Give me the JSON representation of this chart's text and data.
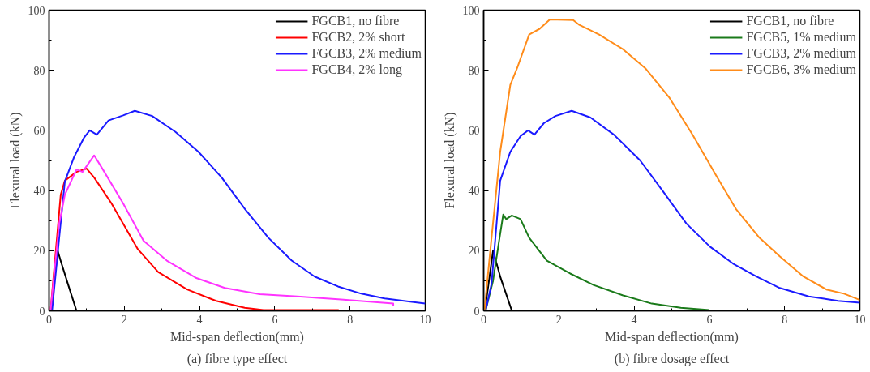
{
  "chart_data": [
    {
      "type": "line",
      "xlabel": "Mid-span deflection(mm)",
      "ylabel": "Flexural load (kN)",
      "annotations": [
        "(a) fibre type effect"
      ],
      "xlim": [
        0,
        10
      ],
      "ylim": [
        0,
        100
      ],
      "xticks": [
        0,
        2,
        4,
        6,
        8,
        10
      ],
      "yticks": [
        0,
        20,
        40,
        60,
        80,
        100
      ],
      "grid": false,
      "legend": "top right",
      "line_style": "solid",
      "marker": "none",
      "series": [
        {
          "name": "FGCB1, no fibre",
          "color": "#000000",
          "x": [
            0.05,
            0.23,
            0.3,
            0.5,
            0.73
          ],
          "values": [
            0,
            20,
            17,
            9,
            0
          ]
        },
        {
          "name": "FGCB2, 2% short",
          "color": "#ff0000",
          "x": [
            0.04,
            0.31,
            0.42,
            0.73,
            1.0,
            1.2,
            1.66,
            2.36,
            2.9,
            3.67,
            4.44,
            5.2,
            5.7,
            7.7
          ],
          "values": [
            0,
            38.6,
            43.3,
            46.2,
            47.3,
            44.3,
            35.7,
            20.5,
            12.9,
            7.1,
            3.3,
            1,
            0.3,
            0.3
          ]
        },
        {
          "name": "FGCB3, 2% medium",
          "color": "#1a1aff",
          "x": [
            0.08,
            0.27,
            0.42,
            0.66,
            0.93,
            1.08,
            1.27,
            1.58,
            1.97,
            2.28,
            2.74,
            3.36,
            3.97,
            4.59,
            5.21,
            5.83,
            6.45,
            7.06,
            7.68,
            8.3,
            8.92,
            10
          ],
          "values": [
            0,
            24.3,
            43,
            51,
            57.6,
            60,
            58.6,
            63.3,
            65,
            66.5,
            64.8,
            59.5,
            52.9,
            44.3,
            33.8,
            24.3,
            16.7,
            11.4,
            8.1,
            5.7,
            4.1,
            2.4
          ]
        },
        {
          "name": "FGCB4, 2% long",
          "color": "#ff33ff",
          "x": [
            0.04,
            0.27,
            0.42,
            0.73,
            0.89,
            1.2,
            1.43,
            1.97,
            2.51,
            3.13,
            3.9,
            4.67,
            5.6,
            6.6,
            7.76,
            9.15,
            9.15
          ],
          "values": [
            0,
            29,
            38.6,
            47,
            46.2,
            51.7,
            47,
            35.7,
            23.3,
            16.7,
            11,
            7.6,
            5.5,
            4.8,
            3.8,
            2.4,
            1.5
          ]
        }
      ]
    },
    {
      "type": "line",
      "xlabel": "Mid-span deflection(mm)",
      "ylabel": "Flexural load (kN)",
      "annotations": [
        "(b) fibre dosage effect"
      ],
      "xlim": [
        0,
        10
      ],
      "ylim": [
        0,
        100
      ],
      "xticks": [
        0,
        2,
        4,
        6,
        8,
        10
      ],
      "yticks": [
        0,
        20,
        40,
        60,
        80,
        100
      ],
      "grid": false,
      "legend": "top right",
      "line_style": "solid",
      "marker": "none",
      "series": [
        {
          "name": "FGCB1, no fibre",
          "color": "#000000",
          "x": [
            0.03,
            0.12,
            0.25,
            0.45,
            0.75
          ],
          "values": [
            0,
            8,
            20,
            11,
            0
          ]
        },
        {
          "name": "FGCB5, 1% medium",
          "color": "#1a7a1a",
          "x": [
            0.05,
            0.25,
            0.4,
            0.52,
            0.6,
            0.75,
            0.98,
            1.21,
            1.68,
            2.3,
            2.92,
            3.69,
            4.47,
            5.24,
            6.0
          ],
          "values": [
            0,
            10,
            22.4,
            32,
            30.5,
            31.7,
            30.5,
            24.3,
            16.7,
            12.4,
            8.6,
            5.2,
            2.4,
            1,
            0.3
          ]
        },
        {
          "name": "FGCB3, 2% medium",
          "color": "#1a1aff",
          "x": [
            0.05,
            0.21,
            0.44,
            0.71,
            0.98,
            1.18,
            1.35,
            1.6,
            1.91,
            2.34,
            2.84,
            3.46,
            4.16,
            4.78,
            5.39,
            6.01,
            6.63,
            7.25,
            7.87,
            8.64,
            9.42,
            10
          ],
          "values": [
            0,
            9,
            43.3,
            52.9,
            58.1,
            60,
            58.6,
            62.4,
            64.8,
            66.5,
            64.3,
            58.6,
            50,
            39.5,
            29,
            21.4,
            15.7,
            11.4,
            7.6,
            4.8,
            3.3,
            2.7
          ]
        },
        {
          "name": "FGCB6, 3% medium",
          "color": "#ff8c1a",
          "x": [
            0.02,
            0.21,
            0.44,
            0.71,
            0.91,
            1.21,
            1.49,
            1.76,
            2.38,
            2.53,
            3.07,
            3.69,
            4.31,
            4.93,
            5.55,
            6.17,
            6.71,
            7.33,
            7.87,
            8.5,
            9.11,
            9.58,
            9.96,
            10
          ],
          "values": [
            0,
            24.3,
            52.9,
            75.2,
            81.4,
            91.9,
            93.8,
            96.9,
            96.7,
            95.2,
            91.9,
            87.1,
            80.5,
            71,
            58.6,
            45.2,
            33.8,
            24.3,
            18.1,
            11.4,
            7.1,
            5.7,
            3.8,
            3.5
          ]
        }
      ]
    }
  ]
}
